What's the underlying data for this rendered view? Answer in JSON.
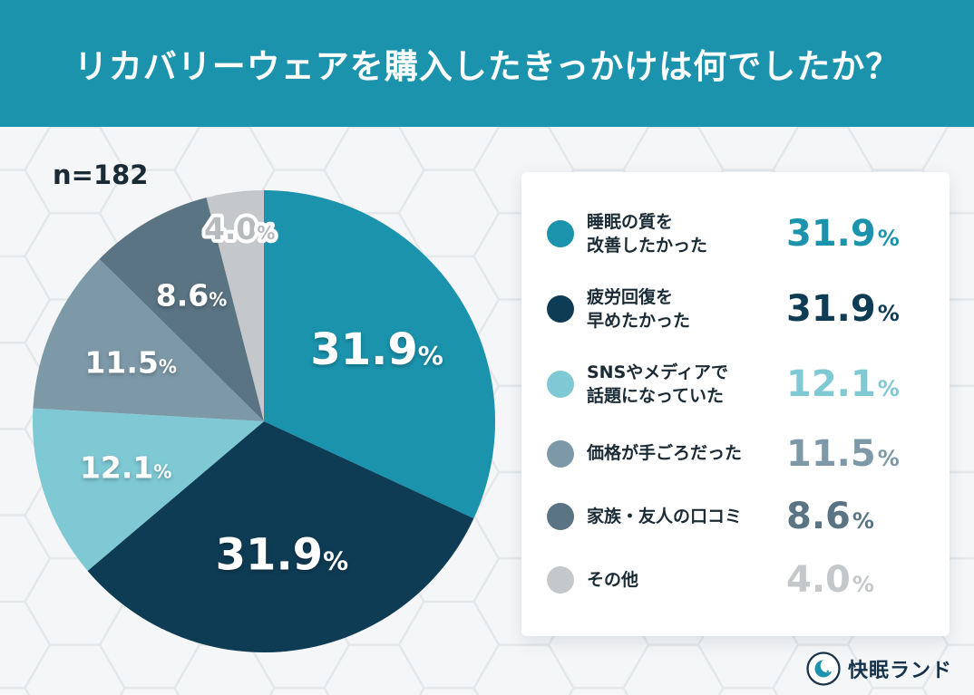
{
  "percent_sign": "%",
  "header": {
    "title": "リカバリーウェアを購入したきっかけは何でしたか？",
    "bg_color": "#1b93ad",
    "text_color": "#ffffff"
  },
  "sample_label": "n=182",
  "chart_data": {
    "type": "pie",
    "title": "リカバリーウェアを購入したきっかけは何でしたか？",
    "sample_size": "n=182",
    "start_angle_deg": 0,
    "direction": "clockwise",
    "unit": "%",
    "legend_position": "right",
    "segments": [
      {
        "label": "睡眠の質を改善したかった",
        "label_lines": [
          "睡眠の質を",
          "改善したかった"
        ],
        "value": 31.9,
        "display_value": "31.9",
        "color": "#1b93ad"
      },
      {
        "label": "疲労回復を早めたかった",
        "label_lines": [
          "疲労回復を",
          "早めたかった"
        ],
        "value": 31.9,
        "display_value": "31.9",
        "color": "#0e3c55"
      },
      {
        "label": "SNSやメディアで話題になっていた",
        "label_lines": [
          "SNSやメディアで",
          "話題になっていた"
        ],
        "value": 12.1,
        "display_value": "12.1",
        "color": "#7fc9d5"
      },
      {
        "label": "価格が手ごろだった",
        "label_lines": [
          "価格が手ごろだった"
        ],
        "value": 11.5,
        "display_value": "11.5",
        "color": "#7d99a8"
      },
      {
        "label": "家族・友人の口コミ",
        "label_lines": [
          "家族・友人の口コミ"
        ],
        "value": 8.6,
        "display_value": "8.6",
        "color": "#5a7484"
      },
      {
        "label": "その他",
        "label_lines": [
          "その他"
        ],
        "value": 4.0,
        "display_value": "4.0",
        "color": "#c5c8ca",
        "pie_label_color": "#b7bbbe"
      }
    ]
  },
  "footer": {
    "brand": "快眠ランド"
  }
}
